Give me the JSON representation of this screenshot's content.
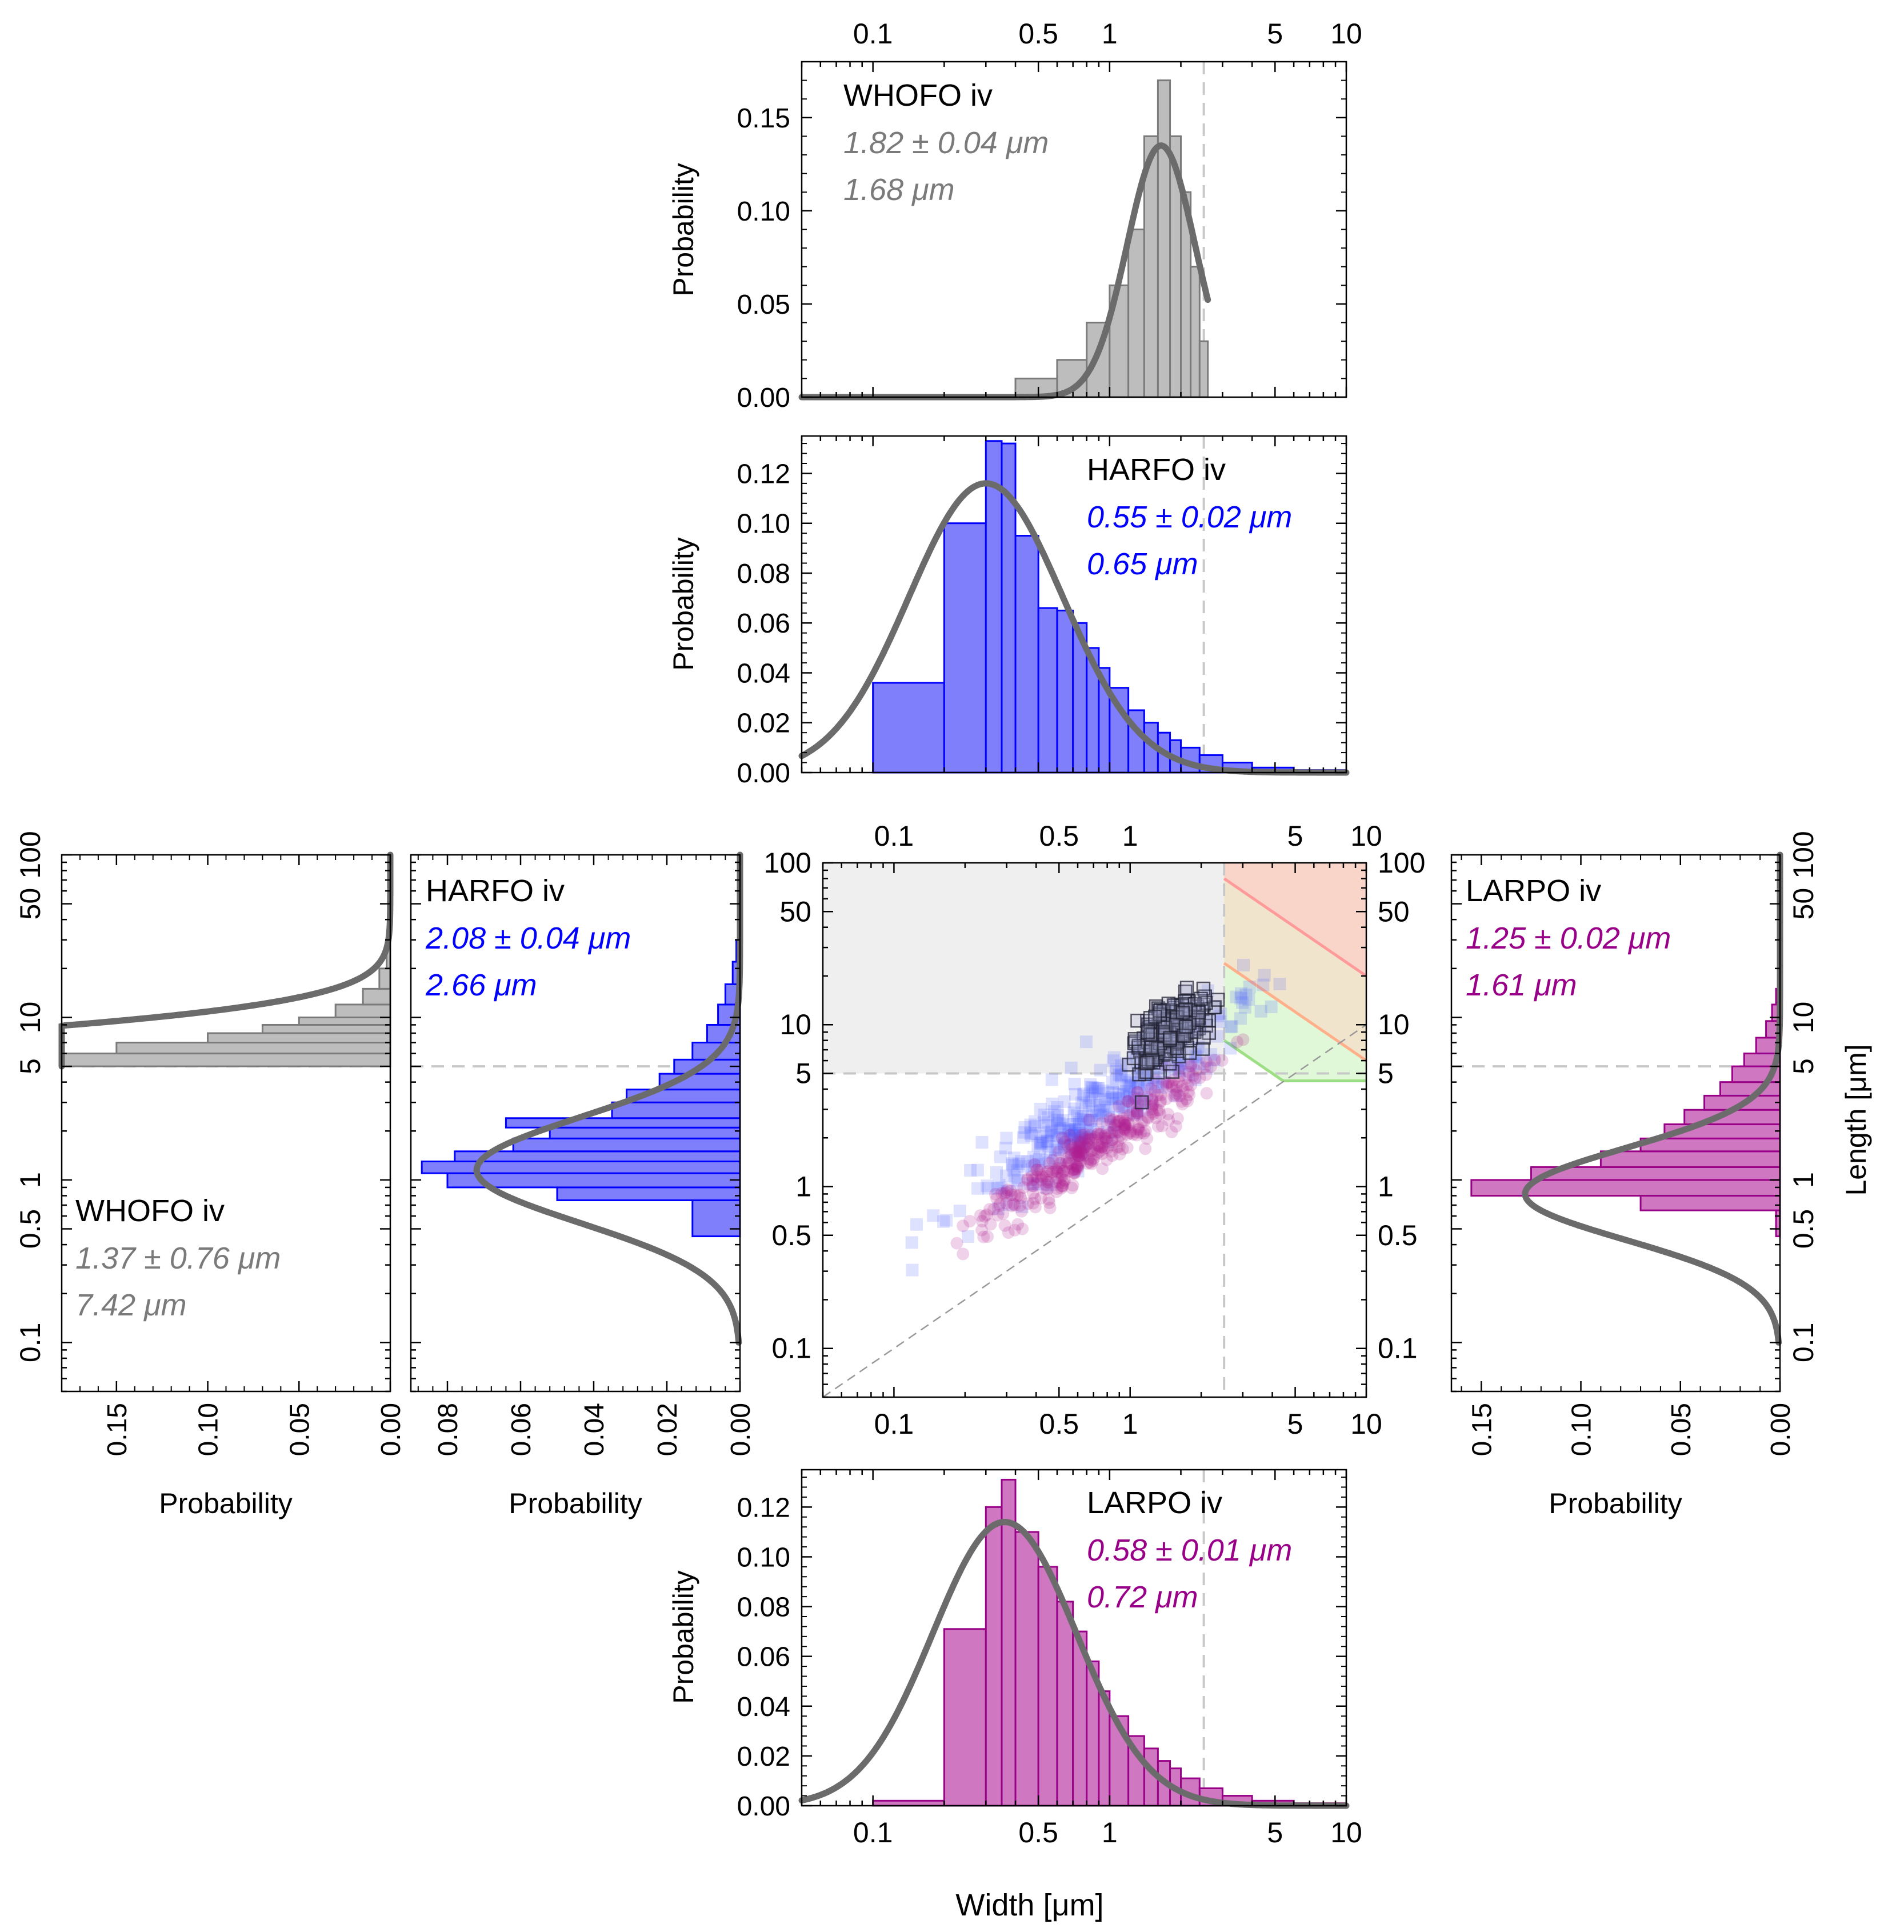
{
  "colors": {
    "whofo": "#7a7a7a",
    "whofo_fill": "#bdbdbd",
    "harfo": "#0000ff",
    "harfo_fill": "#7f7ffc",
    "larpo": "#990088",
    "larpo_fill": "#cf77c0",
    "fit_curve": "#6b6b6b",
    "axis": "#000000",
    "guide": "#c8c8c8",
    "shade_gray": "#efefef",
    "scatter_black": "#222233"
  },
  "width_axis": {
    "range": [
      0.05,
      10
    ],
    "ticks": [
      {
        "v": 0.1,
        "label": "0.1"
      },
      {
        "v": 0.5,
        "label": "0.5"
      },
      {
        "v": 1,
        "label": "1"
      },
      {
        "v": 5,
        "label": "5"
      },
      {
        "v": 10,
        "label": "10"
      }
    ],
    "label": "Width [μm]",
    "cutoff": 2.5
  },
  "length_axis": {
    "range": [
      0.05,
      100
    ],
    "ticks": [
      {
        "v": 0.1,
        "label": "0.1"
      },
      {
        "v": 0.5,
        "label": "0.5"
      },
      {
        "v": 1,
        "label": "1"
      },
      {
        "v": 5,
        "label": "5"
      },
      {
        "v": 10,
        "label": "10"
      },
      {
        "v": 50,
        "label": "50"
      },
      {
        "v": 100,
        "label": "100"
      }
    ],
    "label": "Length [μm]",
    "cutoff": 5
  },
  "prob_label": "Probability",
  "chart_data": [
    {
      "id": "width_whofo",
      "type": "bar",
      "orientation": "vertical",
      "title": "WHOFO  iv",
      "stat_mean": "1.82 ± 0.04 μm",
      "stat_second": "1.68 μm",
      "color": "gray",
      "xlabel": "",
      "ylabel": "Probability",
      "xscale": "log",
      "xlim": [
        0.05,
        10
      ],
      "ylim": [
        0,
        0.18
      ],
      "yticks": [
        0,
        0.05,
        0.1,
        0.15
      ],
      "ytick_labels": [
        "0.00",
        "0.05",
        "0.10",
        "0.15"
      ],
      "bins": [
        [
          0.4,
          0.6,
          0.01
        ],
        [
          0.6,
          0.8,
          0.02
        ],
        [
          0.8,
          1.0,
          0.04
        ],
        [
          1.0,
          1.2,
          0.06
        ],
        [
          1.2,
          1.4,
          0.09
        ],
        [
          1.4,
          1.6,
          0.14
        ],
        [
          1.6,
          1.8,
          0.17
        ],
        [
          1.8,
          2.0,
          0.14
        ],
        [
          2.0,
          2.2,
          0.11
        ],
        [
          2.2,
          2.4,
          0.07
        ],
        [
          2.4,
          2.6,
          0.03
        ]
      ],
      "fit_lognormal": {
        "median": 1.65,
        "sigma": 0.33,
        "peak": 0.135,
        "xmax": 2.6
      }
    },
    {
      "id": "width_harfo",
      "type": "bar",
      "orientation": "vertical",
      "title": "HARFO  iv",
      "stat_mean": "0.55 ± 0.02 μm",
      "stat_second": "0.65 μm",
      "color": "blue",
      "xlabel": "",
      "ylabel": "Probability",
      "xscale": "log",
      "xlim": [
        0.05,
        10
      ],
      "ylim": [
        0,
        0.135
      ],
      "yticks": [
        0,
        0.02,
        0.04,
        0.06,
        0.08,
        0.1,
        0.12
      ],
      "ytick_labels": [
        "0.00",
        "0.02",
        "0.04",
        "0.06",
        "0.08",
        "0.10",
        "0.12"
      ],
      "bins": [
        [
          0.1,
          0.2,
          0.036
        ],
        [
          0.2,
          0.3,
          0.1
        ],
        [
          0.3,
          0.35,
          0.133
        ],
        [
          0.35,
          0.4,
          0.132
        ],
        [
          0.4,
          0.5,
          0.095
        ],
        [
          0.5,
          0.6,
          0.066
        ],
        [
          0.6,
          0.7,
          0.065
        ],
        [
          0.7,
          0.8,
          0.06
        ],
        [
          0.8,
          0.9,
          0.05
        ],
        [
          0.9,
          1.0,
          0.042
        ],
        [
          1.0,
          1.2,
          0.034
        ],
        [
          1.2,
          1.4,
          0.025
        ],
        [
          1.4,
          1.6,
          0.02
        ],
        [
          1.6,
          1.8,
          0.016
        ],
        [
          1.8,
          2.0,
          0.013
        ],
        [
          2.0,
          2.4,
          0.01
        ],
        [
          2.4,
          3.0,
          0.007
        ],
        [
          3.0,
          4.0,
          0.004
        ],
        [
          4.0,
          6.0,
          0.002
        ],
        [
          6.0,
          10.0,
          0.001
        ]
      ],
      "fit_lognormal": {
        "median": 0.3,
        "sigma": 0.75,
        "peak": 0.116,
        "xmax": 10
      }
    },
    {
      "id": "width_larpo",
      "type": "bar",
      "orientation": "vertical",
      "title": "LARPO  iv",
      "stat_mean": "0.58 ± 0.01 μm",
      "stat_second": "0.72 μm",
      "color": "purple",
      "xlabel": "Width [μm]",
      "ylabel": "Probability",
      "xscale": "log",
      "xlim": [
        0.05,
        10
      ],
      "ylim": [
        0,
        0.135
      ],
      "yticks": [
        0,
        0.02,
        0.04,
        0.06,
        0.08,
        0.1,
        0.12
      ],
      "ytick_labels": [
        "0.00",
        "0.02",
        "0.04",
        "0.06",
        "0.08",
        "0.10",
        "0.12"
      ],
      "bins": [
        [
          0.1,
          0.2,
          0.002
        ],
        [
          0.2,
          0.3,
          0.071
        ],
        [
          0.3,
          0.35,
          0.12
        ],
        [
          0.35,
          0.4,
          0.131
        ],
        [
          0.4,
          0.5,
          0.11
        ],
        [
          0.5,
          0.6,
          0.096
        ],
        [
          0.6,
          0.7,
          0.082
        ],
        [
          0.7,
          0.8,
          0.07
        ],
        [
          0.8,
          0.9,
          0.058
        ],
        [
          0.9,
          1.0,
          0.046
        ],
        [
          1.0,
          1.2,
          0.036
        ],
        [
          1.2,
          1.4,
          0.028
        ],
        [
          1.4,
          1.6,
          0.023
        ],
        [
          1.6,
          1.8,
          0.018
        ],
        [
          1.8,
          2.0,
          0.015
        ],
        [
          2.0,
          2.4,
          0.011
        ],
        [
          2.4,
          3.0,
          0.007
        ],
        [
          3.0,
          4.0,
          0.004
        ],
        [
          4.0,
          6.0,
          0.002
        ],
        [
          6.0,
          10.0,
          0.001
        ]
      ],
      "fit_lognormal": {
        "median": 0.36,
        "sigma": 0.7,
        "peak": 0.114,
        "xmax": 10
      }
    },
    {
      "id": "length_whofo",
      "type": "bar",
      "orientation": "horizontal",
      "title": "WHOFO  iv",
      "stat_mean": "1.37 ± 0.76 μm",
      "stat_second": "7.42 μm",
      "color": "gray",
      "xlabel": "Probability",
      "ylabel": "",
      "yscale": "log",
      "ylim": [
        0.05,
        100
      ],
      "xlim": [
        0,
        0.18
      ],
      "xticks": [
        0,
        0.05,
        0.1,
        0.15
      ],
      "xtick_labels": [
        "0.00",
        "0.05",
        "0.10",
        "0.15"
      ],
      "bins": [
        [
          5,
          6,
          0.18
        ],
        [
          6,
          7,
          0.15
        ],
        [
          7,
          8,
          0.1
        ],
        [
          8,
          9,
          0.07
        ],
        [
          9,
          10,
          0.05
        ],
        [
          10,
          12,
          0.03
        ],
        [
          12,
          15,
          0.015
        ],
        [
          15,
          20,
          0.006
        ],
        [
          20,
          30,
          0.002
        ]
      ],
      "fit_lognormal": {
        "median": 3.2,
        "sigma": 0.62,
        "peak": 0.7,
        "ymin": 5
      }
    },
    {
      "id": "length_harfo",
      "type": "bar",
      "orientation": "horizontal",
      "title": "HARFO  iv",
      "stat_mean": "2.08 ± 0.04 μm",
      "stat_second": "2.66 μm",
      "color": "blue",
      "xlabel": "Probability",
      "ylabel": "",
      "yscale": "log",
      "ylim": [
        0.05,
        100
      ],
      "xlim": [
        0,
        0.09
      ],
      "xticks": [
        0,
        0.02,
        0.04,
        0.06,
        0.08
      ],
      "xtick_labels": [
        "0.00",
        "0.02",
        "0.04",
        "0.06",
        "0.08"
      ],
      "bins": [
        [
          0.45,
          0.75,
          0.013
        ],
        [
          0.75,
          0.9,
          0.05
        ],
        [
          0.9,
          1.1,
          0.08
        ],
        [
          1.1,
          1.3,
          0.087
        ],
        [
          1.3,
          1.5,
          0.078
        ],
        [
          1.5,
          1.8,
          0.062
        ],
        [
          1.8,
          2.1,
          0.052
        ],
        [
          2.1,
          2.4,
          0.064
        ],
        [
          2.4,
          3.0,
          0.035
        ],
        [
          3.0,
          3.6,
          0.031
        ],
        [
          3.6,
          4.5,
          0.022
        ],
        [
          4.5,
          5.5,
          0.018
        ],
        [
          5.5,
          7.0,
          0.013
        ],
        [
          7.0,
          9.0,
          0.009
        ],
        [
          9.0,
          12.0,
          0.006
        ],
        [
          12.0,
          16.0,
          0.004
        ],
        [
          16.0,
          22.0,
          0.002
        ],
        [
          22.0,
          30.0,
          0.001
        ]
      ],
      "fit_lognormal": {
        "median": 1.15,
        "sigma": 0.75,
        "peak": 0.072,
        "ymin": 0.1
      }
    },
    {
      "id": "length_larpo",
      "type": "bar",
      "orientation": "horizontal",
      "title": "LARPO  iv",
      "stat_mean": "1.25 ± 0.02 μm",
      "stat_second": "1.61 μm",
      "color": "purple",
      "xlabel": "Probability",
      "ylabel": "Length [μm]",
      "yscale": "log",
      "ylim": [
        0.05,
        100
      ],
      "xlim": [
        0,
        0.165
      ],
      "xticks": [
        0,
        0.05,
        0.1,
        0.15
      ],
      "xtick_labels": [
        "0.00",
        "0.05",
        "0.10",
        "0.15"
      ],
      "bins": [
        [
          0.45,
          0.65,
          0.002
        ],
        [
          0.65,
          0.8,
          0.07
        ],
        [
          0.8,
          1.0,
          0.155
        ],
        [
          1.0,
          1.2,
          0.125
        ],
        [
          1.2,
          1.5,
          0.09
        ],
        [
          1.5,
          1.8,
          0.07
        ],
        [
          1.8,
          2.2,
          0.058
        ],
        [
          2.2,
          2.7,
          0.048
        ],
        [
          2.7,
          3.3,
          0.038
        ],
        [
          3.3,
          4.0,
          0.03
        ],
        [
          4.0,
          5.0,
          0.024
        ],
        [
          5.0,
          6.0,
          0.018
        ],
        [
          6.0,
          7.5,
          0.012
        ],
        [
          7.5,
          9.5,
          0.007
        ],
        [
          9.5,
          12.0,
          0.004
        ],
        [
          12.0,
          15.0,
          0.002
        ]
      ],
      "fit_lognormal": {
        "median": 0.82,
        "sigma": 0.65,
        "peak": 0.128,
        "ymin": 0.1
      }
    },
    {
      "id": "scatter_width_length",
      "type": "scatter",
      "title": "",
      "xlabel": "Width [μm]",
      "ylabel": "Length [μm]",
      "xscale": "log",
      "yscale": "log",
      "xlim": [
        0.05,
        10
      ],
      "ylim": [
        0.05,
        100
      ],
      "series": [
        {
          "name": "HARFO iv",
          "marker": "square",
          "color": "blue",
          "trend": {
            "a": 4.2,
            "b": 1.0,
            "scatter_decades": 0.12
          },
          "x_range": [
            0.09,
            6.0
          ],
          "count": 340
        },
        {
          "name": "LARPO iv",
          "marker": "circle",
          "color": "purple",
          "trend": {
            "a": 2.5,
            "b": 1.0,
            "scatter_decades": 0.08
          },
          "x_range": [
            0.12,
            4.0
          ],
          "count": 360
        },
        {
          "name": "WHOFO iv",
          "marker": "square-open",
          "color": "black",
          "trend": {
            "a": 6.6,
            "b": 0.8,
            "scatter_decades": 0.09
          },
          "x_range": [
            0.9,
            2.5
          ],
          "count": 230
        }
      ],
      "reference_line": "length = width",
      "cutoffs": {
        "width": 2.5,
        "length": 5
      },
      "contours": [
        {
          "k": 20,
          "color": "green"
        },
        {
          "k": 60,
          "color": "orange"
        },
        {
          "k": 200,
          "color": "red"
        }
      ]
    }
  ]
}
